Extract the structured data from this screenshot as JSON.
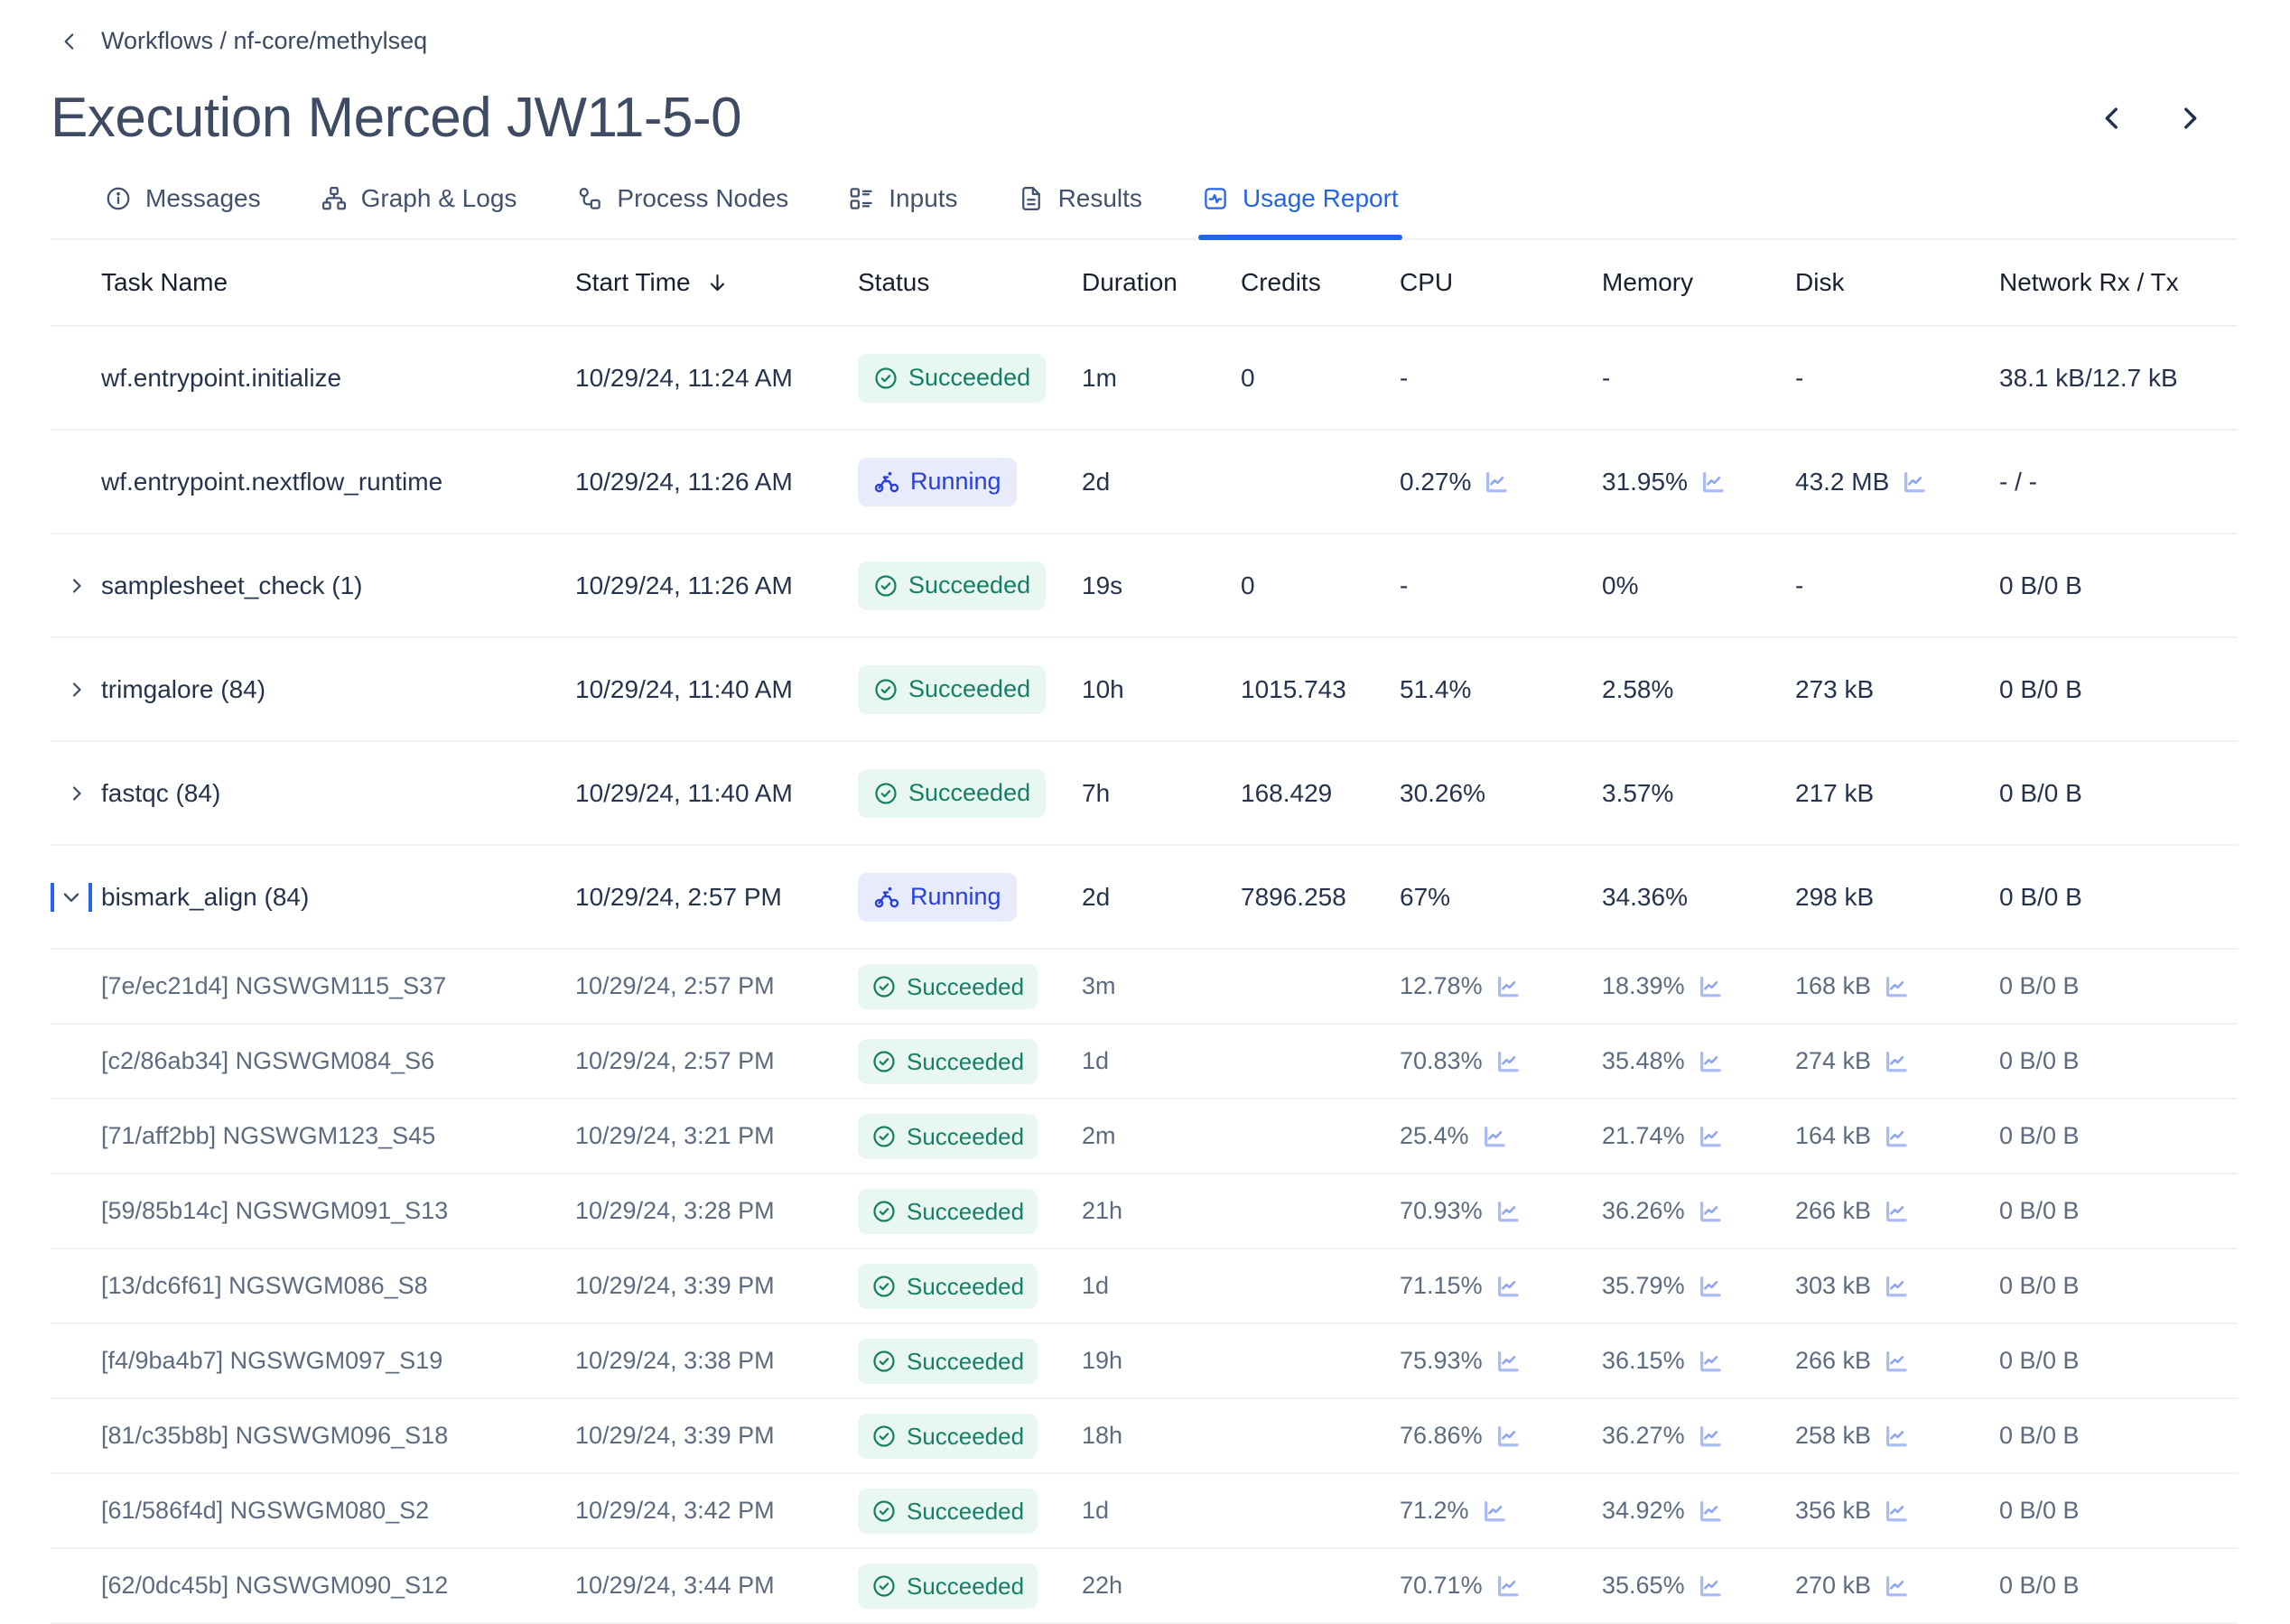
{
  "breadcrumb": {
    "label": "Workflows / nf-core/methylseq"
  },
  "page": {
    "title": "Execution Merced JW11-5-0"
  },
  "tabs": [
    {
      "label": "Messages",
      "icon": "info-icon",
      "active": false
    },
    {
      "label": "Graph & Logs",
      "icon": "graph-icon",
      "active": false
    },
    {
      "label": "Process Nodes",
      "icon": "process-nodes-icon",
      "active": false
    },
    {
      "label": "Inputs",
      "icon": "inputs-icon",
      "active": false
    },
    {
      "label": "Results",
      "icon": "results-icon",
      "active": false
    },
    {
      "label": "Usage Report",
      "icon": "usage-report-icon",
      "active": true
    }
  ],
  "table": {
    "columns": [
      "Task Name",
      "Start Time",
      "Status",
      "Duration",
      "Credits",
      "CPU",
      "Memory",
      "Disk",
      "Network Rx / Tx"
    ],
    "sorted_column": "Start Time",
    "sort_direction": "descending",
    "rows": [
      {
        "name": "wf.entrypoint.initialize",
        "child": false,
        "expand": "none",
        "start": "10/29/24, 11:24 AM",
        "status": "Succeeded",
        "duration": "1m",
        "credits": "0",
        "cpu": "-",
        "cpu_chart": false,
        "memory": "-",
        "memory_chart": false,
        "disk": "-",
        "disk_chart": false,
        "network": "38.1 kB/12.7 kB"
      },
      {
        "name": "wf.entrypoint.nextflow_runtime",
        "child": false,
        "expand": "none",
        "start": "10/29/24, 11:26 AM",
        "status": "Running",
        "duration": "2d",
        "credits": "",
        "cpu": "0.27%",
        "cpu_chart": true,
        "memory": "31.95%",
        "memory_chart": true,
        "disk": "43.2 MB",
        "disk_chart": true,
        "network": "- / -"
      },
      {
        "name": "samplesheet_check (1)",
        "child": false,
        "expand": "collapsed",
        "start": "10/29/24, 11:26 AM",
        "status": "Succeeded",
        "duration": "19s",
        "credits": "0",
        "cpu": "-",
        "cpu_chart": false,
        "memory": "0%",
        "memory_chart": false,
        "disk": "-",
        "disk_chart": false,
        "network": "0 B/0 B"
      },
      {
        "name": "trimgalore (84)",
        "child": false,
        "expand": "collapsed",
        "start": "10/29/24, 11:40 AM",
        "status": "Succeeded",
        "duration": "10h",
        "credits": "1015.743",
        "cpu": "51.4%",
        "cpu_chart": false,
        "memory": "2.58%",
        "memory_chart": false,
        "disk": "273 kB",
        "disk_chart": false,
        "network": "0 B/0 B"
      },
      {
        "name": "fastqc (84)",
        "child": false,
        "expand": "collapsed",
        "start": "10/29/24, 11:40 AM",
        "status": "Succeeded",
        "duration": "7h",
        "credits": "168.429",
        "cpu": "30.26%",
        "cpu_chart": false,
        "memory": "3.57%",
        "memory_chart": false,
        "disk": "217 kB",
        "disk_chart": false,
        "network": "0 B/0 B"
      },
      {
        "name": "bismark_align (84)",
        "child": false,
        "expand": "expanded",
        "start": "10/29/24, 2:57 PM",
        "status": "Running",
        "duration": "2d",
        "credits": "7896.258",
        "cpu": "67%",
        "cpu_chart": false,
        "memory": "34.36%",
        "memory_chart": false,
        "disk": "298 kB",
        "disk_chart": false,
        "network": "0 B/0 B"
      },
      {
        "name": "[7e/ec21d4] NGSWGM115_S37",
        "child": true,
        "expand": "none",
        "start": "10/29/24, 2:57 PM",
        "status": "Succeeded",
        "duration": "3m",
        "credits": "",
        "cpu": "12.78%",
        "cpu_chart": true,
        "memory": "18.39%",
        "memory_chart": true,
        "disk": "168 kB",
        "disk_chart": true,
        "network": "0 B/0 B"
      },
      {
        "name": "[c2/86ab34] NGSWGM084_S6",
        "child": true,
        "expand": "none",
        "start": "10/29/24, 2:57 PM",
        "status": "Succeeded",
        "duration": "1d",
        "credits": "",
        "cpu": "70.83%",
        "cpu_chart": true,
        "memory": "35.48%",
        "memory_chart": true,
        "disk": "274 kB",
        "disk_chart": true,
        "network": "0 B/0 B"
      },
      {
        "name": "[71/aff2bb] NGSWGM123_S45",
        "child": true,
        "expand": "none",
        "start": "10/29/24, 3:21 PM",
        "status": "Succeeded",
        "duration": "2m",
        "credits": "",
        "cpu": "25.4%",
        "cpu_chart": true,
        "memory": "21.74%",
        "memory_chart": true,
        "disk": "164 kB",
        "disk_chart": true,
        "network": "0 B/0 B"
      },
      {
        "name": "[59/85b14c] NGSWGM091_S13",
        "child": true,
        "expand": "none",
        "start": "10/29/24, 3:28 PM",
        "status": "Succeeded",
        "duration": "21h",
        "credits": "",
        "cpu": "70.93%",
        "cpu_chart": true,
        "memory": "36.26%",
        "memory_chart": true,
        "disk": "266 kB",
        "disk_chart": true,
        "network": "0 B/0 B"
      },
      {
        "name": "[13/dc6f61] NGSWGM086_S8",
        "child": true,
        "expand": "none",
        "start": "10/29/24, 3:39 PM",
        "status": "Succeeded",
        "duration": "1d",
        "credits": "",
        "cpu": "71.15%",
        "cpu_chart": true,
        "memory": "35.79%",
        "memory_chart": true,
        "disk": "303 kB",
        "disk_chart": true,
        "network": "0 B/0 B"
      },
      {
        "name": "[f4/9ba4b7] NGSWGM097_S19",
        "child": true,
        "expand": "none",
        "start": "10/29/24, 3:38 PM",
        "status": "Succeeded",
        "duration": "19h",
        "credits": "",
        "cpu": "75.93%",
        "cpu_chart": true,
        "memory": "36.15%",
        "memory_chart": true,
        "disk": "266 kB",
        "disk_chart": true,
        "network": "0 B/0 B"
      },
      {
        "name": "[81/c35b8b] NGSWGM096_S18",
        "child": true,
        "expand": "none",
        "start": "10/29/24, 3:39 PM",
        "status": "Succeeded",
        "duration": "18h",
        "credits": "",
        "cpu": "76.86%",
        "cpu_chart": true,
        "memory": "36.27%",
        "memory_chart": true,
        "disk": "258 kB",
        "disk_chart": true,
        "network": "0 B/0 B"
      },
      {
        "name": "[61/586f4d] NGSWGM080_S2",
        "child": true,
        "expand": "none",
        "start": "10/29/24, 3:42 PM",
        "status": "Succeeded",
        "duration": "1d",
        "credits": "",
        "cpu": "71.2%",
        "cpu_chart": true,
        "memory": "34.92%",
        "memory_chart": true,
        "disk": "356 kB",
        "disk_chart": true,
        "network": "0 B/0 B"
      },
      {
        "name": "[62/0dc45b] NGSWGM090_S12",
        "child": true,
        "expand": "none",
        "start": "10/29/24, 3:44 PM",
        "status": "Succeeded",
        "duration": "22h",
        "credits": "",
        "cpu": "70.71%",
        "cpu_chart": true,
        "memory": "35.65%",
        "memory_chart": true,
        "disk": "270 kB",
        "disk_chart": true,
        "network": "0 B/0 B"
      }
    ]
  },
  "colors": {
    "accent": "#2563eb",
    "succeeded_bg": "#e9f7f1",
    "succeeded_fg": "#157f66",
    "running_bg": "#e8ebfc",
    "running_fg": "#2840d4",
    "chart_icon": "#8da5f2",
    "text_primary": "#26334d",
    "text_secondary": "#5d6b80",
    "title": "#3e4c63"
  }
}
